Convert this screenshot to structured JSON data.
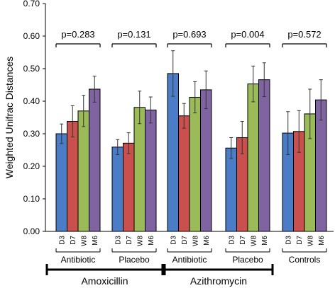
{
  "chart_data": {
    "type": "bar",
    "ylabel": "Weighted Unifrac Distances",
    "ylim": [
      0,
      0.7
    ],
    "yticks": [
      "0.00",
      "0.10",
      "0.20",
      "0.30",
      "0.40",
      "0.50",
      "0.60",
      "0.70"
    ],
    "timepoints": [
      "D3",
      "D7",
      "W8",
      "M6"
    ],
    "colors": [
      "#4a7cc7",
      "#c9504c",
      "#9bbb59",
      "#8064a2"
    ],
    "groups": [
      {
        "label": "Antibiotic",
        "pvalue": "p=0.283",
        "values": [
          0.3,
          0.338,
          0.37,
          0.437
        ],
        "errors": [
          0.03,
          0.048,
          0.048,
          0.04
        ]
      },
      {
        "label": "Placebo",
        "pvalue": "p=0.131",
        "values": [
          0.259,
          0.271,
          0.381,
          0.373
        ],
        "errors": [
          0.023,
          0.032,
          0.05,
          0.04
        ]
      },
      {
        "label": "Antibiotic",
        "pvalue": "p=0.693",
        "values": [
          0.485,
          0.355,
          0.412,
          0.435
        ],
        "errors": [
          0.07,
          0.038,
          0.048,
          0.058
        ]
      },
      {
        "label": "Placebo",
        "pvalue": "p=0.004",
        "values": [
          0.256,
          0.288,
          0.453,
          0.466
        ],
        "errors": [
          0.032,
          0.05,
          0.055,
          0.052
        ]
      },
      {
        "label": "Controls",
        "pvalue": "p=0.572",
        "values": [
          0.302,
          0.307,
          0.361,
          0.404
        ],
        "errors": [
          0.066,
          0.064,
          0.076,
          0.062
        ]
      }
    ],
    "drugs": [
      "Amoxicillin",
      "Azithromycin"
    ]
  }
}
